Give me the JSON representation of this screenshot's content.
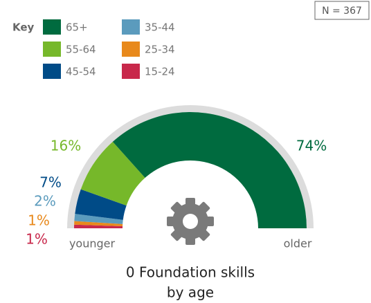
{
  "chart_data": {
    "type": "donut",
    "title": [
      "0 Foundation skills",
      "by age"
    ],
    "legend_title": "Key",
    "note": "N = 367",
    "start_label": "younger",
    "end_label": "older",
    "categories": [
      "65+",
      "55-64",
      "45-54",
      "35-44",
      "25-34",
      "15-24"
    ],
    "values": [
      74,
      16,
      7,
      2,
      1,
      1
    ],
    "value_labels": [
      "74%",
      "16%",
      "7%",
      "2%",
      "1%",
      "1%"
    ],
    "colors": [
      "#006b3f",
      "#76b82a",
      "#004b87",
      "#5b9bbd",
      "#e8891c",
      "#c8284b"
    ]
  }
}
